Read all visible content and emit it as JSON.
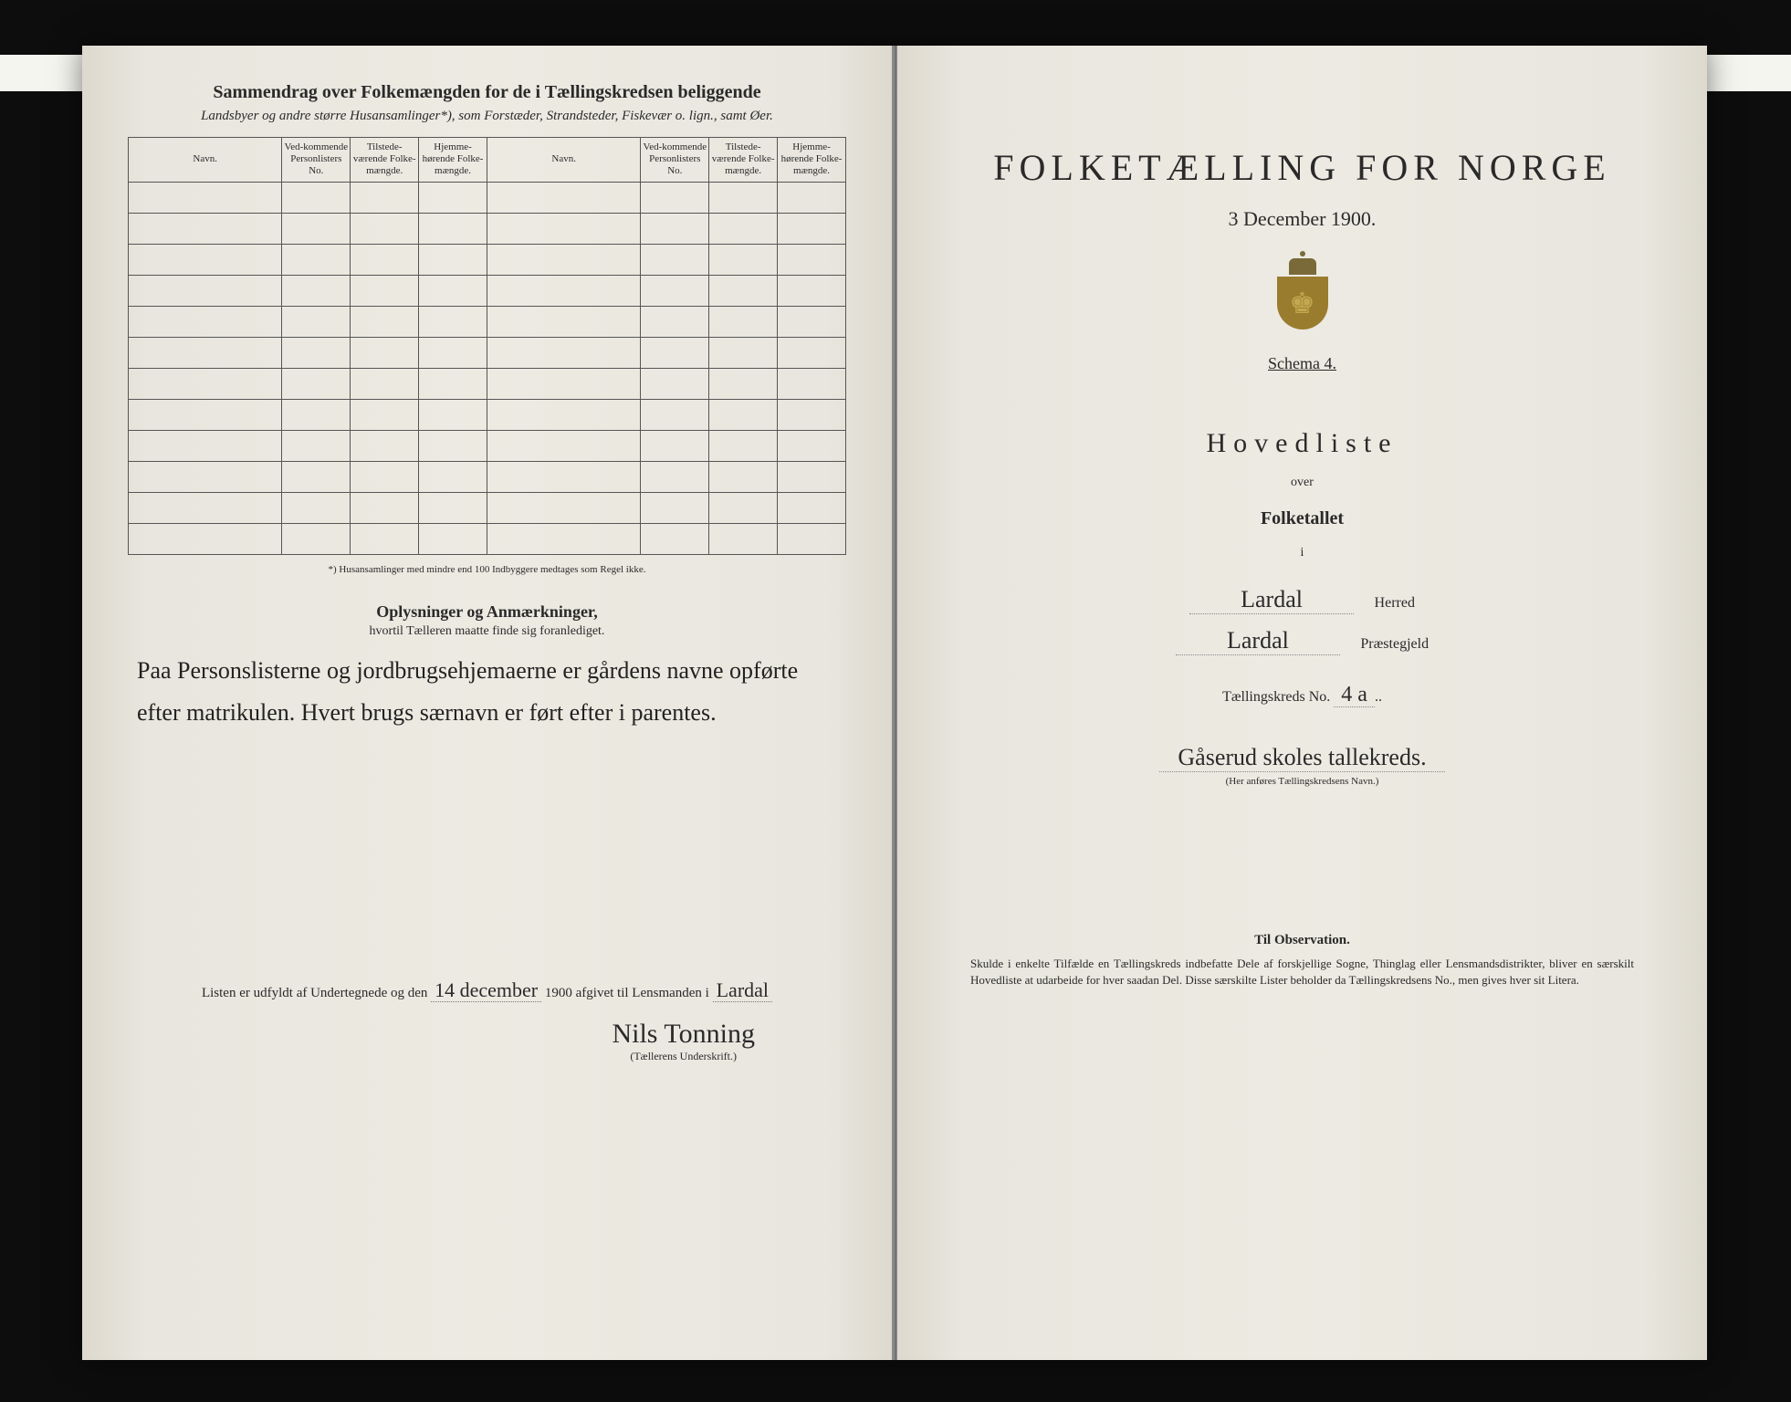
{
  "left": {
    "summary_title": "Sammendrag over Folkemængden for de i Tællingskredsen beliggende",
    "summary_sub": "Landsbyer og andre større Husansamlinger*), som Forstæder, Strandsteder, Fiskevær o. lign., samt Øer.",
    "table_headers": {
      "navn": "Navn.",
      "vedkommende": "Ved-kommende Personlisters No.",
      "tilstede": "Tilstede-værende Folke-mængde.",
      "hjemme": "Hjemme-hørende Folke-mængde."
    },
    "row_count": 12,
    "footnote": "*) Husansamlinger med mindre end 100 Indbyggere medtages som Regel ikke.",
    "remarks_title": "Oplysninger og Anmærkninger,",
    "remarks_sub": "hvortil Tælleren maatte finde sig foranlediget.",
    "handwritten_remarks": "Paa Personslisterne og jordbrugsehjemaerne er gårdens navne opførte efter matrikulen. Hvert brugs særnavn er ført efter i parentes.",
    "sign_prefix": "Listen er udfyldt af Undertegnede og den",
    "sign_date": "14 december",
    "sign_year": "1900",
    "sign_mid": "afgivet til Lensmanden i",
    "sign_place": "Lardal",
    "signature": "Nils Tonning",
    "sig_label": "(Tællerens Underskrift.)"
  },
  "right": {
    "main_title": "FOLKETÆLLING FOR NORGE",
    "date": "3 December 1900.",
    "schema": "Schema 4.",
    "hovedliste": "Hovedliste",
    "over": "over",
    "folketallet": "Folketallet",
    "i": "i",
    "herred_value": "Lardal",
    "herred_label": "Herred",
    "praestegjeld_value": "Lardal",
    "praestegjeld_label": "Præstegjeld",
    "kreds_prefix": "Tællingskreds No.",
    "kreds_no": "4 a",
    "kreds_name": "Gåserud skoles tallekreds.",
    "kreds_caption": "(Her anføres Tællingskredsens Navn.)",
    "obs_title": "Til Observation.",
    "obs_text": "Skulde i enkelte Tilfælde en Tællingskreds indbefatte Dele af forskjellige Sogne, Thinglag eller Lensmandsdistrikter, bliver en særskilt Hovedliste at udarbeide for hver saadan Del. Disse særskilte Lister beholder da Tællingskredsens No., men gives hver sit Litera."
  },
  "colors": {
    "paper": "#e8e6de",
    "ink": "#2a2a2a",
    "crest_gold": "#9a7c2e"
  }
}
